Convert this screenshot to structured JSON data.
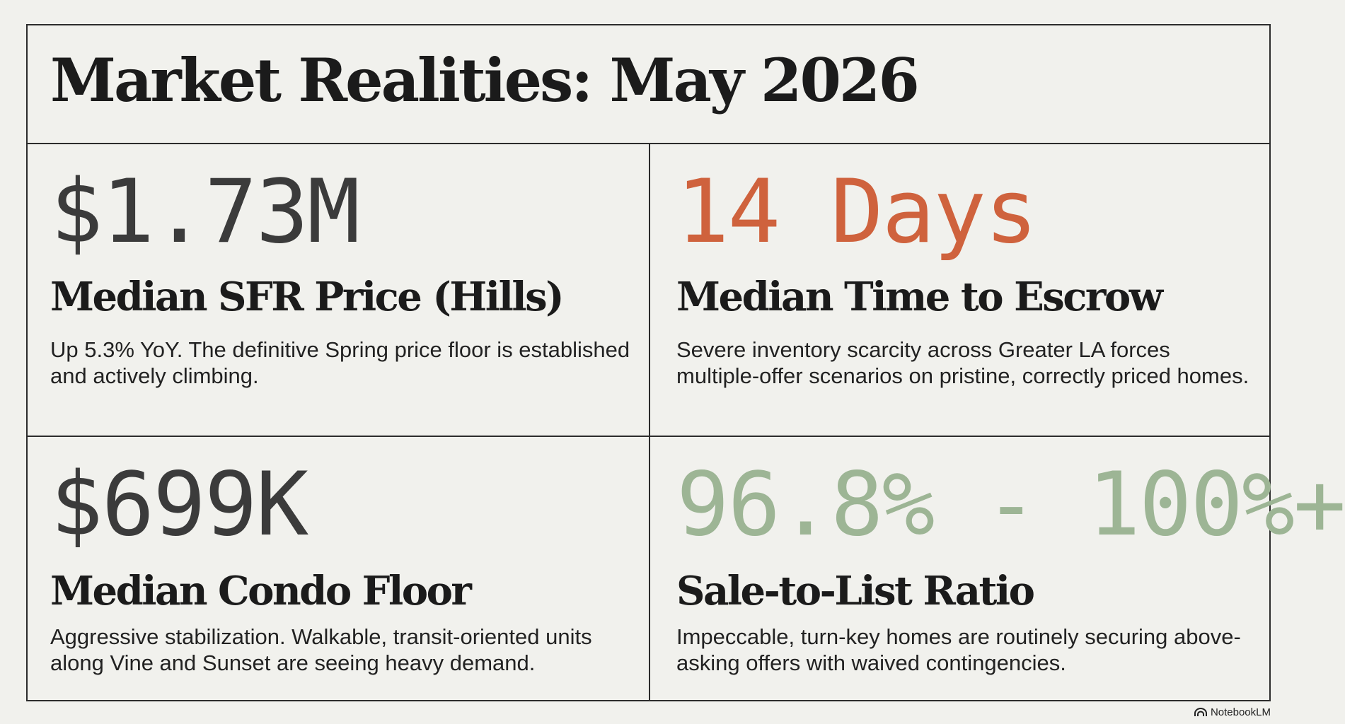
{
  "title": "Market Realities: May 2026",
  "metrics": [
    {
      "value": "$1.73M",
      "label": "Median SFR Price (Hills)",
      "description": "Up 5.3% YoY. The definitive Spring price floor is established and actively climbing.",
      "color": "#3b3b3b"
    },
    {
      "value": "14 Days",
      "label": "Median Time to Escrow",
      "description": "Severe inventory scarcity across Greater LA forces multiple-offer scenarios on pristine, correctly priced homes.",
      "color": "#cf623d"
    },
    {
      "value": "$699K",
      "label": "Median Condo Floor",
      "description": "Aggressive stabilization. Walkable, transit-oriented units along Vine and Sunset are seeing heavy demand.",
      "color": "#3b3b3b"
    },
    {
      "value": "96.8% - 100%+",
      "label": "Sale-to-List Ratio",
      "description": "Impeccable, turn-key homes are routinely securing above-asking offers with waived contingencies.",
      "color": "#9db595"
    }
  ],
  "watermark": {
    "text": "NotebookLM",
    "icon": "notebooklm-logo-icon"
  }
}
